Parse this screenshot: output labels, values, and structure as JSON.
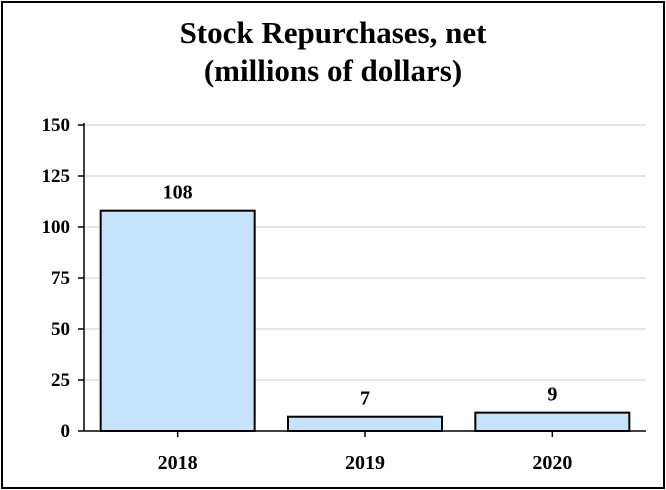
{
  "chart_data": {
    "type": "bar",
    "title_lines": [
      "Stock Repurchases, net",
      "(millions of dollars)"
    ],
    "xlabel": "",
    "ylabel": "",
    "categories": [
      "2018",
      "2019",
      "2020"
    ],
    "values": [
      108,
      7,
      9
    ],
    "data_labels": [
      "108",
      "7",
      "9"
    ],
    "ylim": [
      0,
      150
    ],
    "yticks": [
      "0",
      "25",
      "50",
      "75",
      "100",
      "125",
      "150"
    ],
    "grid": true,
    "legend": "none",
    "colors": {
      "bar_fill": "#c5e4fb",
      "bar_stroke": "#000000",
      "grid": "#e6e6e6",
      "axis": "#000000"
    }
  }
}
